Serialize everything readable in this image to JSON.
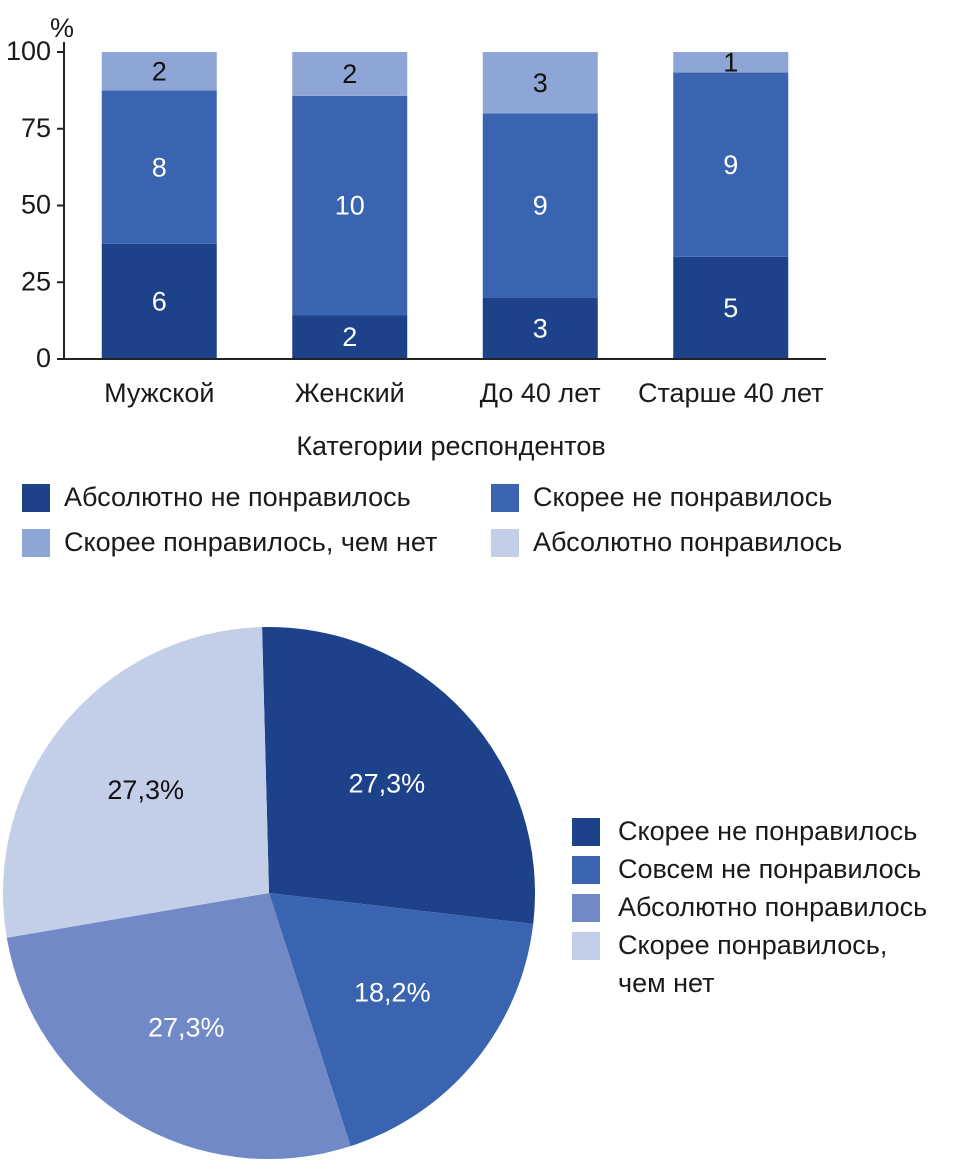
{
  "chart_data": [
    {
      "type": "bar",
      "stacked": true,
      "ylabel": "%",
      "xlabel": "Категории респондентов",
      "ylim": [
        0,
        100
      ],
      "yticks": [
        0,
        25,
        50,
        75,
        100
      ],
      "categories": [
        "Мужской",
        "Женский",
        "До 40 лет",
        "Старше 40 лет"
      ],
      "series": [
        {
          "name": "Абсолютно не понравилось",
          "color": "#1d428a",
          "values": [
            37.5,
            14.3,
            20,
            33.3
          ],
          "labels": [
            "6",
            "2",
            "3",
            "5"
          ],
          "label_color": "#ffffff"
        },
        {
          "name": "Скорее не понравилось",
          "color": "#3a64b0",
          "values": [
            50,
            71.4,
            60,
            60
          ],
          "labels": [
            "8",
            "10",
            "9",
            "9"
          ],
          "label_color": "#ffffff"
        },
        {
          "name": "Скорее понравилось, чем нет",
          "color": "#8ea6d6",
          "values": [
            12.5,
            14.3,
            20,
            6.7
          ],
          "labels": [
            "2",
            "2",
            "3",
            "1"
          ],
          "label_color": "#111111"
        },
        {
          "name": "Абсолютно понравилось",
          "color": "#c3cfe9",
          "values": [
            0,
            0,
            0,
            0
          ],
          "labels": [
            "",
            "",
            "",
            ""
          ],
          "label_color": "#111111"
        }
      ],
      "legend": "bottom"
    },
    {
      "type": "pie",
      "slices": [
        {
          "name": "Скорее не понравилось",
          "value": 27.3,
          "label": "27,3%",
          "color": "#1d428a",
          "label_color": "#ffffff"
        },
        {
          "name": "Совсем не понравилось",
          "value": 18.2,
          "label": "18,2%",
          "color": "#3a64b0",
          "label_color": "#ffffff"
        },
        {
          "name": "Абсолютно понравилось",
          "value": 27.3,
          "label": "27,3%",
          "color": "#7189c6",
          "label_color": "#ffffff"
        },
        {
          "name": "Скорее понравилось, чем нет",
          "value": 27.3,
          "label": "27,3%",
          "color": "#c3cfe9",
          "label_color": "#111111"
        }
      ],
      "legend": "right"
    }
  ]
}
